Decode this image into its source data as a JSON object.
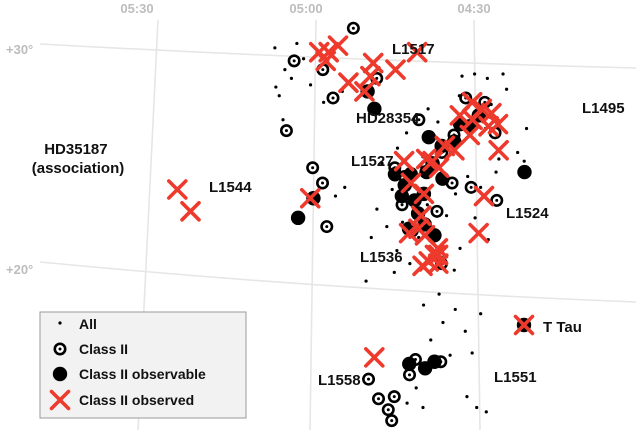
{
  "chart_data": {
    "type": "scatter",
    "axes": {
      "ra_ticks": [
        "05:30",
        "05:00",
        "04:30"
      ],
      "dec_ticks": [
        "+30°",
        "+20°"
      ]
    },
    "grid": true,
    "legend": {
      "placement": "bottom-left",
      "entries": [
        "All",
        "Class II",
        "Class II observable",
        "Class II observed"
      ]
    },
    "annotations": [
      "L1517",
      "L1495",
      "HD28354",
      "L1527",
      "HD35187\n(association)",
      "L1544",
      "L1524",
      "L1536",
      "T Tau",
      "L1558",
      "L1551"
    ],
    "colors": {
      "observed": "#ee3a2d",
      "source": "#000000",
      "grid": "#e6e6e6",
      "legend_bg": "#f2f2f2"
    },
    "series": [
      {
        "name": "All",
        "points": [
          [
            4.4,
            28.2
          ],
          [
            4.45,
            27.5
          ],
          [
            4.47,
            26.4
          ],
          [
            4.5,
            28.9
          ],
          [
            4.52,
            26.1
          ],
          [
            4.55,
            27.9
          ],
          [
            4.58,
            25.8
          ],
          [
            4.6,
            24.9
          ],
          [
            4.62,
            26.7
          ],
          [
            4.65,
            27.3
          ],
          [
            4.67,
            25.1
          ],
          [
            4.7,
            24.4
          ],
          [
            4.72,
            26.2
          ],
          [
            4.75,
            25.5
          ],
          [
            4.77,
            23.6
          ],
          [
            4.8,
            24.8
          ],
          [
            4.82,
            22.7
          ],
          [
            4.57,
            23.4
          ],
          [
            4.6,
            22.4
          ],
          [
            4.63,
            21.7
          ],
          [
            4.66,
            22.9
          ],
          [
            4.69,
            21.4
          ],
          [
            4.71,
            23.1
          ],
          [
            4.74,
            22.1
          ],
          [
            4.76,
            20.8
          ],
          [
            4.79,
            21.9
          ],
          [
            4.53,
            24.2
          ],
          [
            4.56,
            20.9
          ],
          [
            4.49,
            23.7
          ],
          [
            4.51,
            22.3
          ],
          [
            4.47,
            21.3
          ],
          [
            4.44,
            24.4
          ],
          [
            4.37,
            25.3
          ],
          [
            4.35,
            24.9
          ],
          [
            4.34,
            26.4
          ],
          [
            4.96,
            29.9
          ],
          [
            5.06,
            30.3
          ],
          [
            5.1,
            29.1
          ],
          [
            5.02,
            28.4
          ],
          [
            5.08,
            28.7
          ],
          [
            4.92,
            28.1
          ],
          [
            4.98,
            27.6
          ],
          [
            5.04,
            29.6
          ],
          [
            5.12,
            27.9
          ],
          [
            5.13,
            28.3
          ],
          [
            5.11,
            26.8
          ],
          [
            5.13,
            30.1
          ],
          [
            4.92,
            23.7
          ],
          [
            4.95,
            23.3
          ],
          [
            4.58,
            18.1
          ],
          [
            4.62,
            17.5
          ],
          [
            4.55,
            17.1
          ],
          [
            4.68,
            18.3
          ],
          [
            4.66,
            16.7
          ],
          [
            4.53,
            16.1
          ],
          [
            4.6,
            16.0
          ],
          [
            4.5,
            17.9
          ],
          [
            4.71,
            14.5
          ],
          [
            4.69,
            13.6
          ],
          [
            4.74,
            13.8
          ],
          [
            4.55,
            14.1
          ],
          [
            4.52,
            13.6
          ],
          [
            4.49,
            13.4
          ],
          [
            4.63,
            18.8
          ],
          [
            4.72,
            20.2
          ],
          [
            4.77,
            19.8
          ],
          [
            4.62,
            20.5
          ],
          [
            4.58,
            19.9
          ],
          [
            4.84,
            21.4
          ],
          [
            4.86,
            19.4
          ],
          [
            4.46,
            28.7
          ],
          [
            4.41,
            28.9
          ],
          [
            4.43,
            25.0
          ],
          [
            4.54,
            28.8
          ]
        ]
      },
      {
        "name": "Class II",
        "points": [
          [
            4.88,
            31.0
          ],
          [
            5.07,
            29.5
          ],
          [
            4.98,
            29.1
          ],
          [
            4.81,
            28.7
          ],
          [
            4.95,
            27.8
          ],
          [
            5.1,
            26.3
          ],
          [
            4.68,
            26.8
          ],
          [
            4.53,
            27.8
          ],
          [
            4.47,
            27.6
          ],
          [
            4.44,
            26.2
          ],
          [
            4.57,
            26.1
          ],
          [
            4.61,
            25.3
          ],
          [
            4.73,
            24.2
          ],
          [
            4.76,
            24.6
          ],
          [
            4.74,
            22.9
          ],
          [
            4.58,
            23.9
          ],
          [
            4.52,
            23.7
          ],
          [
            4.44,
            23.1
          ],
          [
            5.02,
            24.6
          ],
          [
            4.99,
            23.9
          ],
          [
            4.98,
            21.9
          ],
          [
            4.62,
            20.2
          ],
          [
            4.71,
            15.8
          ],
          [
            4.73,
            15.1
          ],
          [
            4.63,
            15.7
          ],
          [
            4.86,
            14.9
          ],
          [
            4.83,
            14.0
          ],
          [
            4.8,
            13.5
          ],
          [
            4.78,
            14.1
          ],
          [
            4.79,
            13.0
          ],
          [
            4.71,
            21.7
          ],
          [
            4.63,
            22.6
          ],
          [
            4.66,
            24.7
          ]
        ]
      },
      {
        "name": "Class II observable",
        "points": [
          [
            4.84,
            28.1
          ],
          [
            4.82,
            27.3
          ],
          [
            4.49,
            27.0
          ],
          [
            4.55,
            26.6
          ],
          [
            4.65,
            26.0
          ],
          [
            4.76,
            24.3
          ],
          [
            4.71,
            24.3
          ],
          [
            4.73,
            23.8
          ],
          [
            4.66,
            24.4
          ],
          [
            4.64,
            24.8
          ],
          [
            4.61,
            24.1
          ],
          [
            4.67,
            23.4
          ],
          [
            4.7,
            23.1
          ],
          [
            4.69,
            22.5
          ],
          [
            4.67,
            22.0
          ],
          [
            4.72,
            21.8
          ],
          [
            4.64,
            21.5
          ],
          [
            5.02,
            23.2
          ],
          [
            5.07,
            22.3
          ],
          [
            4.35,
            24.4
          ],
          [
            4.61,
            25.6
          ],
          [
            4.57,
            25.8
          ],
          [
            4.73,
            15.6
          ],
          [
            4.68,
            15.4
          ],
          [
            4.65,
            15.7
          ],
          [
            4.74,
            23.3
          ],
          [
            4.52,
            26.5
          ]
        ]
      },
      {
        "name": "Class II observed",
        "points": [
          [
            4.99,
            29.9
          ],
          [
            4.96,
            29.9
          ],
          [
            4.93,
            30.2
          ],
          [
            4.97,
            29.5
          ],
          [
            4.83,
            28.8
          ],
          [
            4.85,
            28.1
          ],
          [
            4.9,
            28.5
          ],
          [
            4.75,
            29.1
          ],
          [
            4.68,
            29.9
          ],
          [
            4.82,
            29.4
          ],
          [
            4.48,
            27.3
          ],
          [
            4.51,
            26.8
          ],
          [
            4.46,
            26.5
          ],
          [
            4.45,
            27.1
          ],
          [
            4.52,
            26.1
          ],
          [
            4.51,
            27.6
          ],
          [
            4.55,
            27.0
          ],
          [
            4.57,
            25.4
          ],
          [
            4.6,
            25.6
          ],
          [
            4.62,
            24.6
          ],
          [
            4.64,
            24.9
          ],
          [
            4.66,
            25.0
          ],
          [
            4.73,
            24.9
          ],
          [
            4.71,
            23.9
          ],
          [
            4.67,
            23.4
          ],
          [
            4.68,
            22.4
          ],
          [
            4.72,
            21.6
          ],
          [
            4.69,
            21.8
          ],
          [
            4.67,
            21.5
          ],
          [
            4.43,
            26.6
          ],
          [
            4.43,
            25.4
          ],
          [
            4.48,
            23.3
          ],
          [
            5.03,
            23.2
          ],
          [
            5.45,
            23.6
          ],
          [
            5.41,
            22.6
          ],
          [
            4.63,
            20.9
          ],
          [
            4.64,
            20.6
          ],
          [
            4.66,
            20.3
          ],
          [
            4.63,
            20.6
          ],
          [
            4.63,
            20.2
          ],
          [
            4.68,
            20.1
          ],
          [
            4.84,
            15.9
          ],
          [
            4.5,
            21.6
          ]
        ]
      }
    ]
  }
}
